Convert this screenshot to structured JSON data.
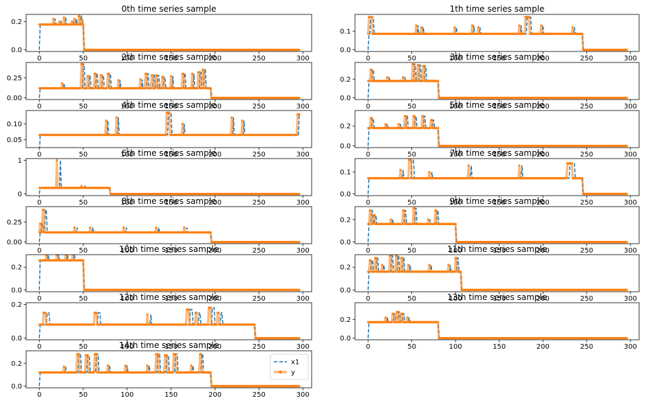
{
  "figure": {
    "legend": [
      {
        "label": "x1",
        "color": "#1f77b4",
        "style": "dashed"
      },
      {
        "label": "y",
        "color": "#ff7f0e",
        "style": "solid-dots"
      }
    ]
  },
  "chart_data": [
    {
      "type": "line",
      "title": "0th time series sample",
      "xlim": [
        -15,
        310
      ],
      "ylim": [
        -0.012,
        0.252
      ],
      "xticks": [
        0,
        50,
        100,
        150,
        200,
        250,
        300
      ],
      "yticks": [
        0.0,
        0.2
      ],
      "ytick_labels": [
        "0.0",
        "0.2"
      ],
      "end": 50,
      "base": 0.18,
      "spikes": [
        {
          "x": 16,
          "h": 0.22,
          "w": 1
        },
        {
          "x": 23,
          "h": 0.2,
          "w": 1
        },
        {
          "x": 28,
          "h": 0.23,
          "w": 1
        },
        {
          "x": 37,
          "h": 0.2,
          "w": 1
        },
        {
          "x": 40,
          "h": 0.22,
          "w": 1
        },
        {
          "x": 45,
          "h": 0.24,
          "w": 2
        },
        {
          "x": 49,
          "h": 0.21,
          "w": 1
        }
      ],
      "series": [
        {
          "name": "x1",
          "lag": 2
        },
        {
          "name": "y",
          "lag": 0
        }
      ]
    },
    {
      "type": "line",
      "title": "1th time series sample",
      "xlim": [
        -15,
        310
      ],
      "ylim": [
        -0.009,
        0.189
      ],
      "xticks": [
        0,
        50,
        100,
        150,
        200,
        250,
        300
      ],
      "yticks": [
        0.0,
        0.1
      ],
      "ytick_labels": [
        "0.0",
        "0.1"
      ],
      "end": 245,
      "base": 0.085,
      "spikes": [
        {
          "x": 1,
          "h": 0.175,
          "w": 4
        },
        {
          "x": 55,
          "h": 0.13,
          "w": 1
        },
        {
          "x": 61,
          "h": 0.12,
          "w": 1
        },
        {
          "x": 99,
          "h": 0.12,
          "w": 1
        },
        {
          "x": 119,
          "h": 0.13,
          "w": 1
        },
        {
          "x": 126,
          "h": 0.12,
          "w": 1
        },
        {
          "x": 173,
          "h": 0.13,
          "w": 1
        },
        {
          "x": 180,
          "h": 0.175,
          "w": 5
        },
        {
          "x": 198,
          "h": 0.13,
          "w": 1
        },
        {
          "x": 234,
          "h": 0.12,
          "w": 1
        }
      ],
      "series": [
        {
          "name": "x1",
          "lag": 2
        },
        {
          "name": "y",
          "lag": 0
        }
      ]
    },
    {
      "type": "line",
      "title": "2th time series sample",
      "xlim": [
        -15,
        310
      ],
      "ylim": [
        -0.021,
        0.441
      ],
      "xticks": [
        0,
        50,
        100,
        150,
        200,
        250,
        300
      ],
      "yticks": [
        0.0,
        0.25
      ],
      "ytick_labels": [
        "0.00",
        "0.25"
      ],
      "end": 195,
      "base": 0.12,
      "spikes": [
        {
          "x": 26,
          "h": 0.18,
          "w": 1
        },
        {
          "x": 48,
          "h": 0.42,
          "w": 2
        },
        {
          "x": 55,
          "h": 0.27,
          "w": 2
        },
        {
          "x": 63,
          "h": 0.3,
          "w": 2
        },
        {
          "x": 70,
          "h": 0.28,
          "w": 2
        },
        {
          "x": 78,
          "h": 0.3,
          "w": 2
        },
        {
          "x": 90,
          "h": 0.22,
          "w": 1
        },
        {
          "x": 115,
          "h": 0.23,
          "w": 1
        },
        {
          "x": 121,
          "h": 0.3,
          "w": 2
        },
        {
          "x": 128,
          "h": 0.28,
          "w": 2
        },
        {
          "x": 133,
          "h": 0.28,
          "w": 2
        },
        {
          "x": 140,
          "h": 0.26,
          "w": 2
        },
        {
          "x": 150,
          "h": 0.27,
          "w": 1
        },
        {
          "x": 163,
          "h": 0.3,
          "w": 2
        },
        {
          "x": 174,
          "h": 0.3,
          "w": 1
        },
        {
          "x": 181,
          "h": 0.32,
          "w": 2
        },
        {
          "x": 186,
          "h": 0.35,
          "w": 2
        }
      ],
      "series": [
        {
          "name": "x1",
          "lag": 2
        },
        {
          "name": "y",
          "lag": 0
        }
      ]
    },
    {
      "type": "line",
      "title": "3th time series sample",
      "xlim": [
        -15,
        310
      ],
      "ylim": [
        -0.018,
        0.378
      ],
      "xticks": [
        0,
        50,
        100,
        150,
        200,
        250,
        300
      ],
      "yticks": [
        0.0,
        0.2
      ],
      "ytick_labels": [
        "0.0",
        "0.2"
      ],
      "end": 80,
      "base": 0.18,
      "spikes": [
        {
          "x": 3,
          "h": 0.3,
          "w": 2
        },
        {
          "x": 22,
          "h": 0.22,
          "w": 1
        },
        {
          "x": 40,
          "h": 0.22,
          "w": 1
        },
        {
          "x": 51,
          "h": 0.36,
          "w": 2
        },
        {
          "x": 57,
          "h": 0.35,
          "w": 2
        },
        {
          "x": 63,
          "h": 0.34,
          "w": 2
        }
      ],
      "series": [
        {
          "name": "x1",
          "lag": 2
        },
        {
          "name": "y",
          "lag": 0
        }
      ]
    },
    {
      "type": "line",
      "title": "4th time series sample",
      "xlim": [
        -15,
        310
      ],
      "ylim": [
        0.025,
        0.142
      ],
      "xticks": [
        0,
        50,
        100,
        150,
        200,
        250,
        300
      ],
      "yticks": [
        0.05,
        0.1
      ],
      "ytick_labels": [
        "0.05",
        "0.10"
      ],
      "end": 300,
      "base": 0.065,
      "spikes": [
        {
          "x": 76,
          "h": 0.11,
          "w": 1
        },
        {
          "x": 88,
          "h": 0.12,
          "w": 1
        },
        {
          "x": 145,
          "h": 0.135,
          "w": 4
        },
        {
          "x": 163,
          "h": 0.1,
          "w": 1
        },
        {
          "x": 219,
          "h": 0.12,
          "w": 1
        },
        {
          "x": 231,
          "h": 0.11,
          "w": 1
        },
        {
          "x": 294,
          "h": 0.13,
          "w": 3
        }
      ],
      "series": [
        {
          "name": "x1",
          "lag": 2
        },
        {
          "name": "y",
          "lag": 0
        }
      ]
    },
    {
      "type": "line",
      "title": "5th time series sample",
      "xlim": [
        -15,
        310
      ],
      "ylim": [
        -0.017,
        0.357
      ],
      "xticks": [
        0,
        50,
        100,
        150,
        200,
        250,
        300
      ],
      "yticks": [
        0.0,
        0.2
      ],
      "ytick_labels": [
        "0.0",
        "0.2"
      ],
      "end": 80,
      "base": 0.18,
      "spikes": [
        {
          "x": 3,
          "h": 0.28,
          "w": 2
        },
        {
          "x": 20,
          "h": 0.22,
          "w": 1
        },
        {
          "x": 35,
          "h": 0.22,
          "w": 1
        },
        {
          "x": 42,
          "h": 0.3,
          "w": 2
        },
        {
          "x": 52,
          "h": 0.3,
          "w": 2
        },
        {
          "x": 62,
          "h": 0.3,
          "w": 2
        },
        {
          "x": 72,
          "h": 0.26,
          "w": 2
        }
      ],
      "series": [
        {
          "name": "x1",
          "lag": 2
        },
        {
          "name": "y",
          "lag": 0
        }
      ]
    },
    {
      "type": "line",
      "title": "6th time series sample",
      "xlim": [
        -15,
        310
      ],
      "ylim": [
        -0.05,
        1.05
      ],
      "xticks": [
        0,
        50,
        100,
        150,
        200,
        250,
        300
      ],
      "yticks": [
        0,
        1
      ],
      "ytick_labels": [
        "0",
        "1"
      ],
      "end": 80,
      "base": 0.18,
      "spikes": [
        {
          "x": 20,
          "h": 1.0,
          "w": 1
        },
        {
          "x": 48,
          "h": 0.23,
          "w": 1
        }
      ],
      "series": [
        {
          "name": "x1",
          "lag": 4
        },
        {
          "name": "y",
          "lag": 0
        }
      ]
    },
    {
      "type": "line",
      "title": "7th time series sample",
      "xlim": [
        -15,
        310
      ],
      "ylim": [
        -0.008,
        0.162
      ],
      "xticks": [
        0,
        50,
        100,
        150,
        200,
        250,
        300
      ],
      "yticks": [
        0.0,
        0.1
      ],
      "ytick_labels": [
        "0.0",
        "0.1"
      ],
      "end": 245,
      "base": 0.072,
      "spikes": [
        {
          "x": 37,
          "h": 0.11,
          "w": 1
        },
        {
          "x": 47,
          "h": 0.155,
          "w": 3
        },
        {
          "x": 70,
          "h": 0.1,
          "w": 1
        },
        {
          "x": 115,
          "h": 0.13,
          "w": 1
        },
        {
          "x": 173,
          "h": 0.13,
          "w": 1
        },
        {
          "x": 228,
          "h": 0.14,
          "w": 6
        }
      ],
      "series": [
        {
          "name": "x1",
          "lag": 3
        },
        {
          "name": "y",
          "lag": 0
        }
      ]
    },
    {
      "type": "line",
      "title": "8th time series sample",
      "xlim": [
        -15,
        310
      ],
      "ylim": [
        -0.021,
        0.441
      ],
      "xticks": [
        0,
        50,
        100,
        150,
        200,
        250,
        300
      ],
      "yticks": [
        0.0,
        0.25
      ],
      "ytick_labels": [
        "0.00",
        "0.25"
      ],
      "end": 195,
      "base": 0.12,
      "spikes": [
        {
          "x": 0,
          "h": 0.23,
          "w": 2
        },
        {
          "x": 4,
          "h": 0.4,
          "w": 2
        },
        {
          "x": 40,
          "h": 0.18,
          "w": 1
        },
        {
          "x": 58,
          "h": 0.18,
          "w": 1
        },
        {
          "x": 96,
          "h": 0.18,
          "w": 1
        },
        {
          "x": 133,
          "h": 0.18,
          "w": 1
        },
        {
          "x": 165,
          "h": 0.18,
          "w": 1
        }
      ],
      "series": [
        {
          "name": "x1",
          "lag": 3
        },
        {
          "name": "y",
          "lag": 0
        }
      ]
    },
    {
      "type": "line",
      "title": "9th time series sample",
      "xlim": [
        -15,
        310
      ],
      "ylim": [
        -0.015,
        0.315
      ],
      "xticks": [
        0,
        50,
        100,
        150,
        200,
        250,
        300
      ],
      "yticks": [
        0.0,
        0.2
      ],
      "ytick_labels": [
        "0.0",
        "0.2"
      ],
      "end": 100,
      "base": 0.16,
      "spikes": [
        {
          "x": 2,
          "h": 0.28,
          "w": 2
        },
        {
          "x": 6,
          "h": 0.24,
          "w": 2
        },
        {
          "x": 26,
          "h": 0.2,
          "w": 1
        },
        {
          "x": 40,
          "h": 0.28,
          "w": 2
        },
        {
          "x": 52,
          "h": 0.3,
          "w": 2
        },
        {
          "x": 69,
          "h": 0.2,
          "w": 1
        },
        {
          "x": 77,
          "h": 0.28,
          "w": 2
        }
      ],
      "series": [
        {
          "name": "x1",
          "lag": 2
        },
        {
          "name": "y",
          "lag": 0
        }
      ]
    },
    {
      "type": "line",
      "title": "10th time series sample",
      "xlim": [
        -15,
        310
      ],
      "ylim": [
        -0.016,
        0.31
      ],
      "xticks": [
        0,
        50,
        100,
        150,
        200,
        250,
        300
      ],
      "yticks": [
        0.0,
        0.2
      ],
      "ytick_labels": [
        "0.0",
        "0.2"
      ],
      "end": 50,
      "base": 0.26,
      "spikes": [
        {
          "x": 8,
          "h": 0.31,
          "w": 1
        },
        {
          "x": 20,
          "h": 0.31,
          "w": 1
        },
        {
          "x": 30,
          "h": 0.31,
          "w": 1
        },
        {
          "x": 38,
          "h": 0.31,
          "w": 1
        }
      ],
      "series": [
        {
          "name": "x1",
          "lag": 2
        },
        {
          "name": "y",
          "lag": 0
        }
      ]
    },
    {
      "type": "line",
      "title": "11th time series sample",
      "xlim": [
        -15,
        310
      ],
      "ylim": [
        -0.016,
        0.31
      ],
      "xticks": [
        0,
        50,
        100,
        150,
        200,
        250,
        300
      ],
      "yticks": [
        0.0,
        0.2
      ],
      "ytick_labels": [
        "0.0",
        "0.2"
      ],
      "end": 106,
      "base": 0.16,
      "spikes": [
        {
          "x": 2,
          "h": 0.26,
          "w": 2
        },
        {
          "x": 8,
          "h": 0.28,
          "w": 2
        },
        {
          "x": 16,
          "h": 0.22,
          "w": 1
        },
        {
          "x": 25,
          "h": 0.3,
          "w": 2
        },
        {
          "x": 32,
          "h": 0.3,
          "w": 2
        },
        {
          "x": 38,
          "h": 0.28,
          "w": 2
        },
        {
          "x": 46,
          "h": 0.22,
          "w": 1
        },
        {
          "x": 70,
          "h": 0.22,
          "w": 1
        },
        {
          "x": 92,
          "h": 0.22,
          "w": 1
        },
        {
          "x": 100,
          "h": 0.28,
          "w": 2
        }
      ],
      "series": [
        {
          "name": "x1",
          "lag": 2
        },
        {
          "name": "y",
          "lag": 0
        }
      ]
    },
    {
      "type": "line",
      "title": "12th time series sample",
      "xlim": [
        -15,
        310
      ],
      "ylim": [
        -0.01,
        0.21
      ],
      "xticks": [
        0,
        50,
        100,
        150,
        200,
        250,
        300
      ],
      "yticks": [
        0.0,
        0.2
      ],
      "ytick_labels": [
        "0.0",
        "0.2"
      ],
      "end": 245,
      "base": 0.08,
      "spikes": [
        {
          "x": 5,
          "h": 0.15,
          "w": 3
        },
        {
          "x": 63,
          "h": 0.15,
          "w": 3
        },
        {
          "x": 123,
          "h": 0.14,
          "w": 1
        },
        {
          "x": 168,
          "h": 0.17,
          "w": 3
        },
        {
          "x": 178,
          "h": 0.15,
          "w": 2
        },
        {
          "x": 193,
          "h": 0.18,
          "w": 3
        },
        {
          "x": 203,
          "h": 0.15,
          "w": 2
        }
      ],
      "series": [
        {
          "name": "x1",
          "lag": 4
        },
        {
          "name": "y",
          "lag": 0
        }
      ]
    },
    {
      "type": "line",
      "title": "13th time series sample",
      "xlim": [
        -15,
        310
      ],
      "ylim": [
        -0.018,
        0.378
      ],
      "xticks": [
        0,
        50,
        100,
        150,
        200,
        250,
        300
      ],
      "yticks": [
        0.0,
        0.2
      ],
      "ytick_labels": [
        "0.0",
        "0.2"
      ],
      "end": 80,
      "base": 0.17,
      "spikes": [
        {
          "x": 20,
          "h": 0.22,
          "w": 1
        },
        {
          "x": 28,
          "h": 0.26,
          "w": 2
        },
        {
          "x": 33,
          "h": 0.28,
          "w": 2
        },
        {
          "x": 38,
          "h": 0.26,
          "w": 2
        },
        {
          "x": 45,
          "h": 0.22,
          "w": 1
        }
      ],
      "series": [
        {
          "name": "x1",
          "lag": 2
        },
        {
          "name": "y",
          "lag": 0
        }
      ]
    },
    {
      "type": "line",
      "title": "14th time series sample",
      "xlim": [
        -15,
        310
      ],
      "ylim": [
        -0.015,
        0.31
      ],
      "xticks": [
        0,
        50,
        100,
        150,
        200,
        250,
        300
      ],
      "yticks": [
        0.0,
        0.2
      ],
      "ytick_labels": [
        "0.0",
        "0.2"
      ],
      "end": 195,
      "base": 0.12,
      "spikes": [
        {
          "x": 28,
          "h": 0.17,
          "w": 1
        },
        {
          "x": 43,
          "h": 0.28,
          "w": 3
        },
        {
          "x": 53,
          "h": 0.27,
          "w": 3
        },
        {
          "x": 63,
          "h": 0.28,
          "w": 3
        },
        {
          "x": 78,
          "h": 0.18,
          "w": 1
        },
        {
          "x": 98,
          "h": 0.18,
          "w": 1
        },
        {
          "x": 123,
          "h": 0.18,
          "w": 1
        },
        {
          "x": 133,
          "h": 0.28,
          "w": 3
        },
        {
          "x": 143,
          "h": 0.27,
          "w": 3
        },
        {
          "x": 153,
          "h": 0.28,
          "w": 3
        },
        {
          "x": 173,
          "h": 0.18,
          "w": 1
        },
        {
          "x": 183,
          "h": 0.28,
          "w": 2
        }
      ],
      "series": [
        {
          "name": "x1",
          "lag": 2
        },
        {
          "name": "y",
          "lag": 0
        }
      ]
    }
  ]
}
